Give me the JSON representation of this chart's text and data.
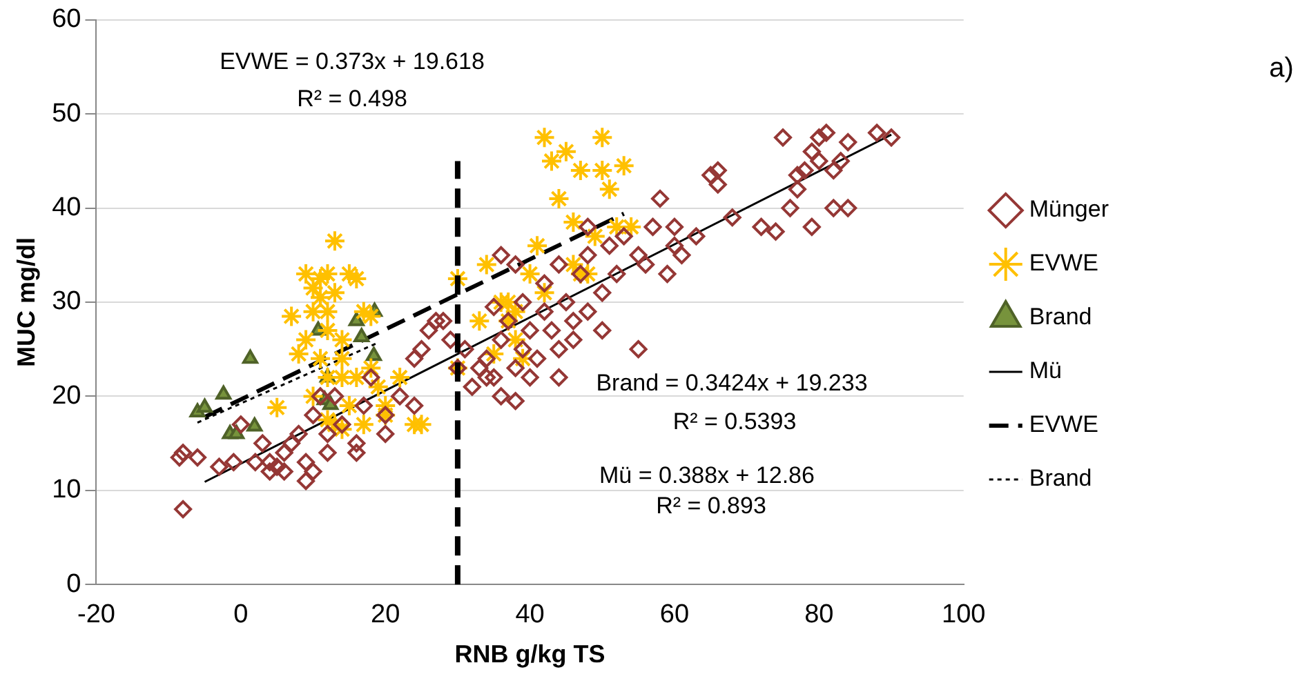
{
  "chart_data": {
    "type": "scatter",
    "xlabel": "RNB g/kg TS",
    "ylabel": "MUC mg/dl",
    "xlim": [
      -20,
      100
    ],
    "ylim": [
      0,
      60
    ],
    "xticks": [
      -20,
      0,
      20,
      40,
      60,
      80,
      100
    ],
    "yticks": [
      0,
      10,
      20,
      30,
      40,
      50,
      60
    ],
    "grid": "y",
    "legend": "right",
    "series": [
      {
        "name": "Münger",
        "marker": "diamond",
        "color": "#953735",
        "x": [
          -8,
          -8.5,
          -8,
          -6,
          -3,
          -1,
          0,
          2,
          3,
          4,
          4,
          5,
          6,
          6,
          7,
          8,
          9,
          9,
          10,
          10,
          11,
          12,
          12,
          13,
          14,
          16,
          16,
          17,
          18,
          20,
          20,
          22,
          24,
          24,
          25,
          26,
          28,
          29,
          30,
          32,
          33,
          34,
          34,
          35,
          36,
          36,
          37,
          38,
          38,
          39,
          40,
          40,
          41,
          42,
          42,
          43,
          44,
          45,
          46,
          47,
          48,
          48,
          50,
          50,
          51,
          52,
          53,
          55,
          55,
          56,
          57,
          58,
          59,
          60,
          60,
          61,
          63,
          65,
          66,
          66,
          68,
          72,
          74,
          75,
          76,
          77,
          77,
          78,
          79,
          79,
          80,
          80,
          81,
          82,
          82,
          83,
          84,
          84,
          88,
          90,
          46,
          44,
          48,
          36,
          38,
          31,
          27,
          35,
          44,
          39
        ],
        "values": [
          14,
          13.5,
          8,
          13.5,
          12.5,
          13,
          17,
          13,
          15,
          13,
          12,
          12.5,
          12,
          14,
          15,
          16,
          11,
          13,
          12,
          18,
          20,
          14,
          16,
          20,
          17,
          15,
          14,
          19,
          22,
          16,
          18,
          20,
          24,
          19,
          25,
          27,
          28,
          26,
          23,
          21,
          23,
          24,
          22,
          22,
          20,
          26,
          28,
          19.5,
          23,
          25,
          27,
          22,
          24,
          29,
          32,
          27,
          25,
          30,
          28,
          33,
          29,
          35,
          31,
          27,
          36,
          33,
          37,
          35,
          25,
          34,
          38,
          41,
          33,
          38,
          36,
          35,
          37,
          43.5,
          44,
          42.5,
          39,
          38,
          37.5,
          47.5,
          40,
          43.5,
          42,
          44,
          46,
          38,
          47.5,
          45,
          48,
          44,
          40,
          45,
          47,
          40,
          48,
          47.5,
          26,
          34,
          38,
          35,
          34,
          25,
          28,
          29.5,
          22,
          30
        ]
      },
      {
        "name": "EVWE",
        "marker": "cross",
        "color": "#ffc000",
        "x": [
          5,
          7,
          8,
          9,
          10,
          10,
          11,
          11,
          12,
          12,
          13,
          13,
          12,
          14,
          15,
          16,
          17,
          9,
          11,
          13,
          14,
          12,
          14,
          16,
          18,
          19,
          20,
          20,
          22,
          24,
          25,
          10,
          12,
          15,
          17,
          18,
          14,
          30,
          30,
          33,
          34,
          36,
          37,
          38,
          38,
          40,
          41,
          42,
          42,
          43,
          45,
          47,
          46,
          46,
          49,
          50,
          50,
          51,
          52,
          53,
          54,
          48,
          44,
          47,
          37,
          35,
          39
        ],
        "values": [
          18.8,
          28.5,
          24.5,
          33,
          29,
          31.5,
          30.5,
          32.5,
          33,
          29,
          36.5,
          31,
          27,
          26,
          33,
          32.5,
          29,
          26,
          24,
          17,
          16.5,
          22,
          22,
          22,
          23,
          21,
          18,
          19,
          22,
          17,
          17,
          20,
          17.5,
          19,
          17,
          28.5,
          24,
          23,
          32.5,
          28,
          34,
          30,
          30,
          26,
          29,
          33,
          36,
          31,
          47.5,
          45,
          46,
          44,
          38.5,
          34,
          37,
          44,
          47.5,
          42,
          38,
          44.5,
          38,
          33,
          41,
          33,
          28,
          24.5,
          24
        ]
      },
      {
        "name": "Brand",
        "marker": "triangle",
        "color": "#77933c",
        "x": [
          -6,
          -5,
          -2.4,
          -1.5,
          -0.6,
          1.3,
          1.9,
          10.7,
          12,
          11.6,
          12.4,
          16,
          16.7,
          18.5,
          18.4
        ],
        "values": [
          18.3,
          18.8,
          20.2,
          16,
          16,
          24,
          16.8,
          27,
          22,
          19.6,
          19.1,
          28,
          26.3,
          29,
          24.3
        ]
      },
      {
        "name": "Mü",
        "type": "line",
        "line_style": "solid",
        "color": "#000000",
        "x": [
          -5,
          90
        ],
        "values": [
          10.9,
          47.8
        ]
      },
      {
        "name": "EVWE",
        "type": "line",
        "line_style": "dashed",
        "color": "#000000",
        "x": [
          -5,
          53
        ],
        "values": [
          17.8,
          39.4
        ]
      },
      {
        "name": "Brand",
        "type": "line",
        "line_style": "dotted",
        "color": "#000000",
        "x": [
          -6,
          19
        ],
        "values": [
          17.2,
          25.7
        ]
      }
    ],
    "ref_lines": [
      {
        "axis": "x",
        "value": 30,
        "line_style": "dashed",
        "color": "#000000"
      }
    ],
    "annotations": [
      "EVWE = 0.373x + 19.618",
      "R² = 0.498",
      "Brand = 0.3424x + 19.233",
      "R² = 0.5393",
      "Mü = 0.388x + 12.86",
      "R² = 0.893",
      "a)"
    ]
  }
}
